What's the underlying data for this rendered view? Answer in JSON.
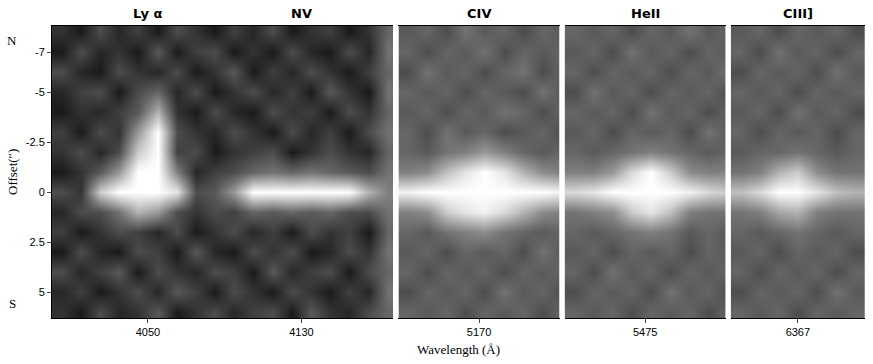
{
  "chart_data": {
    "type": "heatmap",
    "ylabel": "Offset(″)",
    "xlabel": "Wavelength (Å)",
    "ylim": [
      6.3,
      -8.3
    ],
    "yticks": [
      -7,
      -5,
      -2.5,
      0,
      2.5,
      5
    ],
    "side_labels": {
      "top": "N",
      "bottom": "S"
    },
    "color": "gray",
    "zlim": [
      0,
      1
    ],
    "y": [
      -8,
      -7,
      -6,
      -5,
      -4,
      -3,
      -2,
      -1,
      0,
      1,
      2,
      3,
      4,
      5,
      6
    ],
    "panels": [
      {
        "titles": [
          "Ly α",
          "NV"
        ],
        "xlim": [
          4000,
          4178
        ],
        "xticks": [
          4050,
          4130
        ],
        "x": [
          4005,
          4015,
          4025,
          4035,
          4045,
          4055,
          4065,
          4075,
          4085,
          4095,
          4105,
          4115,
          4125,
          4135,
          4145,
          4155,
          4165,
          4175
        ],
        "z": [
          [
            0.2,
            0.1,
            0.3,
            0.15,
            0.25,
            0.1,
            0.3,
            0.2,
            0.1,
            0.25,
            0.15,
            0.3,
            0.1,
            0.2,
            0.25,
            0.1,
            0.2,
            0.4
          ],
          [
            0.1,
            0.3,
            0.15,
            0.2,
            0.1,
            0.35,
            0.1,
            0.25,
            0.3,
            0.1,
            0.2,
            0.1,
            0.3,
            0.15,
            0.1,
            0.3,
            0.15,
            0.45
          ],
          [
            0.3,
            0.15,
            0.1,
            0.3,
            0.2,
            0.15,
            0.3,
            0.1,
            0.2,
            0.35,
            0.1,
            0.25,
            0.15,
            0.3,
            0.2,
            0.1,
            0.25,
            0.4
          ],
          [
            0.15,
            0.25,
            0.3,
            0.1,
            0.3,
            0.4,
            0.15,
            0.3,
            0.1,
            0.2,
            0.3,
            0.15,
            0.25,
            0.1,
            0.35,
            0.2,
            0.1,
            0.45
          ],
          [
            0.1,
            0.2,
            0.15,
            0.25,
            0.35,
            0.7,
            0.2,
            0.1,
            0.3,
            0.15,
            0.1,
            0.3,
            0.2,
            0.25,
            0.1,
            0.3,
            0.2,
            0.4
          ],
          [
            0.25,
            0.1,
            0.3,
            0.2,
            0.6,
            1,
            0.3,
            0.2,
            0.15,
            0.3,
            0.2,
            0.1,
            0.3,
            0.15,
            0.25,
            0.1,
            0.3,
            0.45
          ],
          [
            0.2,
            0.3,
            0.15,
            0.3,
            0.8,
            1,
            0.25,
            0.3,
            0.1,
            0.2,
            0.25,
            0.3,
            0.1,
            0.2,
            0.3,
            0.2,
            0.15,
            0.4
          ],
          [
            0.1,
            0.2,
            0.35,
            0.6,
            1,
            1,
            0.5,
            0.15,
            0.25,
            0.3,
            0.4,
            0.45,
            0.4,
            0.45,
            0.4,
            0.35,
            0.3,
            0.45
          ],
          [
            0.3,
            0.2,
            0.8,
            1,
            1,
            1,
            0.9,
            0.3,
            0.35,
            0.6,
            1,
            1,
            1,
            1,
            1,
            1,
            0.7,
            0.5
          ],
          [
            0.15,
            0.3,
            0.3,
            0.45,
            0.7,
            0.6,
            0.3,
            0.2,
            0.3,
            0.25,
            0.4,
            0.35,
            0.4,
            0.35,
            0.4,
            0.3,
            0.3,
            0.45
          ],
          [
            0.25,
            0.1,
            0.2,
            0.3,
            0.25,
            0.15,
            0.3,
            0.1,
            0.2,
            0.3,
            0.15,
            0.25,
            0.1,
            0.3,
            0.2,
            0.25,
            0.1,
            0.4
          ],
          [
            0.1,
            0.3,
            0.15,
            0.1,
            0.3,
            0.25,
            0.1,
            0.35,
            0.15,
            0.1,
            0.3,
            0.2,
            0.3,
            0.1,
            0.15,
            0.3,
            0.2,
            0.45
          ],
          [
            0.3,
            0.15,
            0.25,
            0.35,
            0.1,
            0.3,
            0.2,
            0.15,
            0.3,
            0.25,
            0.1,
            0.35,
            0.15,
            0.25,
            0.3,
            0.1,
            0.3,
            0.4
          ],
          [
            0.15,
            0.25,
            0.1,
            0.2,
            0.3,
            0.15,
            0.35,
            0.25,
            0.1,
            0.3,
            0.2,
            0.1,
            0.3,
            0.2,
            0.1,
            0.25,
            0.15,
            0.45
          ],
          [
            0.2,
            0.1,
            0.3,
            0.15,
            0.2,
            0.35,
            0.1,
            0.2,
            0.3,
            0.15,
            0.25,
            0.3,
            0.1,
            0.35,
            0.2,
            0.15,
            0.3,
            0.4
          ]
        ]
      },
      {
        "titles": [
          "CIV"
        ],
        "xlim": [
          5128,
          5212
        ],
        "xticks": [
          5170
        ],
        "x": [
          5133,
          5143,
          5153,
          5163,
          5173,
          5183,
          5193,
          5203,
          5213
        ],
        "z": [
          [
            0.35,
            0.4,
            0.3,
            0.45,
            0.35,
            0.4,
            0.3,
            0.4,
            0.35
          ],
          [
            0.4,
            0.3,
            0.4,
            0.35,
            0.45,
            0.3,
            0.4,
            0.35,
            0.4
          ],
          [
            0.3,
            0.45,
            0.35,
            0.4,
            0.3,
            0.4,
            0.45,
            0.3,
            0.4
          ],
          [
            0.4,
            0.35,
            0.4,
            0.3,
            0.4,
            0.35,
            0.3,
            0.45,
            0.35
          ],
          [
            0.35,
            0.4,
            0.3,
            0.4,
            0.35,
            0.45,
            0.4,
            0.3,
            0.4
          ],
          [
            0.4,
            0.3,
            0.45,
            0.35,
            0.4,
            0.3,
            0.35,
            0.4,
            0.3
          ],
          [
            0.4,
            0.35,
            0.45,
            0.5,
            0.6,
            0.5,
            0.4,
            0.35,
            0.4
          ],
          [
            0.5,
            0.55,
            0.75,
            0.9,
            1,
            0.9,
            0.7,
            0.55,
            0.5
          ],
          [
            0.95,
            1,
            1,
            1,
            1,
            1,
            1,
            1,
            0.95
          ],
          [
            0.5,
            0.55,
            0.8,
            0.9,
            0.95,
            0.85,
            0.7,
            0.55,
            0.5
          ],
          [
            0.4,
            0.35,
            0.45,
            0.5,
            0.55,
            0.45,
            0.4,
            0.35,
            0.4
          ],
          [
            0.35,
            0.4,
            0.3,
            0.4,
            0.35,
            0.4,
            0.3,
            0.45,
            0.35
          ],
          [
            0.4,
            0.3,
            0.4,
            0.35,
            0.4,
            0.3,
            0.4,
            0.35,
            0.4
          ],
          [
            0.3,
            0.4,
            0.35,
            0.4,
            0.3,
            0.45,
            0.35,
            0.4,
            0.3
          ],
          [
            0.4,
            0.35,
            0.4,
            0.3,
            0.4,
            0.35,
            0.4,
            0.3,
            0.4
          ]
        ]
      },
      {
        "titles": [
          "HeII"
        ],
        "xlim": [
          5433,
          5517
        ],
        "xticks": [
          5475
        ],
        "x": [
          5438,
          5448,
          5458,
          5468,
          5478,
          5488,
          5498,
          5508,
          5518
        ],
        "z": [
          [
            0.4,
            0.35,
            0.4,
            0.3,
            0.4,
            0.35,
            0.45,
            0.35,
            0.4
          ],
          [
            0.35,
            0.4,
            0.3,
            0.45,
            0.35,
            0.4,
            0.3,
            0.4,
            0.35
          ],
          [
            0.4,
            0.3,
            0.4,
            0.35,
            0.4,
            0.3,
            0.4,
            0.35,
            0.45
          ],
          [
            0.3,
            0.45,
            0.35,
            0.4,
            0.3,
            0.4,
            0.35,
            0.4,
            0.3
          ],
          [
            0.4,
            0.35,
            0.4,
            0.3,
            0.45,
            0.35,
            0.4,
            0.3,
            0.4
          ],
          [
            0.35,
            0.4,
            0.3,
            0.4,
            0.35,
            0.4,
            0.3,
            0.45,
            0.35
          ],
          [
            0.4,
            0.35,
            0.4,
            0.45,
            0.5,
            0.45,
            0.4,
            0.35,
            0.4
          ],
          [
            0.5,
            0.5,
            0.6,
            0.85,
            1,
            0.8,
            0.55,
            0.5,
            0.5
          ],
          [
            0.85,
            0.9,
            1,
            1,
            1,
            1,
            0.95,
            0.85,
            0.8
          ],
          [
            0.45,
            0.5,
            0.55,
            0.8,
            0.9,
            0.75,
            0.5,
            0.45,
            0.45
          ],
          [
            0.4,
            0.35,
            0.4,
            0.45,
            0.5,
            0.45,
            0.35,
            0.4,
            0.35
          ],
          [
            0.35,
            0.4,
            0.3,
            0.4,
            0.35,
            0.4,
            0.3,
            0.4,
            0.35
          ],
          [
            0.4,
            0.3,
            0.45,
            0.35,
            0.4,
            0.3,
            0.4,
            0.35,
            0.4
          ],
          [
            0.3,
            0.4,
            0.35,
            0.4,
            0.3,
            0.45,
            0.35,
            0.4,
            0.3
          ],
          [
            0.4,
            0.35,
            0.4,
            0.3,
            0.4,
            0.35,
            0.4,
            0.3,
            0.4
          ]
        ]
      },
      {
        "titles": [
          "CIII]"
        ],
        "xlim": [
          6332,
          6402
        ],
        "xticks": [
          6367
        ],
        "x": [
          6337,
          6347,
          6357,
          6367,
          6377,
          6387,
          6397
        ],
        "z": [
          [
            0.35,
            0.4,
            0.3,
            0.4,
            0.35,
            0.4,
            0.3
          ],
          [
            0.4,
            0.3,
            0.45,
            0.35,
            0.4,
            0.3,
            0.4
          ],
          [
            0.3,
            0.4,
            0.35,
            0.4,
            0.3,
            0.45,
            0.35
          ],
          [
            0.4,
            0.35,
            0.4,
            0.3,
            0.4,
            0.35,
            0.4
          ],
          [
            0.35,
            0.4,
            0.3,
            0.45,
            0.35,
            0.4,
            0.3
          ],
          [
            0.4,
            0.3,
            0.4,
            0.35,
            0.4,
            0.3,
            0.4
          ],
          [
            0.35,
            0.4,
            0.4,
            0.45,
            0.4,
            0.35,
            0.4
          ],
          [
            0.45,
            0.5,
            0.7,
            0.8,
            0.55,
            0.45,
            0.45
          ],
          [
            0.75,
            0.85,
            1,
            1,
            0.9,
            0.75,
            0.7
          ],
          [
            0.45,
            0.5,
            0.65,
            0.7,
            0.5,
            0.45,
            0.45
          ],
          [
            0.4,
            0.35,
            0.4,
            0.45,
            0.4,
            0.35,
            0.4
          ],
          [
            0.35,
            0.4,
            0.3,
            0.4,
            0.35,
            0.4,
            0.3
          ],
          [
            0.4,
            0.3,
            0.4,
            0.35,
            0.4,
            0.3,
            0.4
          ],
          [
            0.3,
            0.4,
            0.35,
            0.4,
            0.3,
            0.45,
            0.35
          ],
          [
            0.4,
            0.35,
            0.4,
            0.3,
            0.4,
            0.35,
            0.4
          ]
        ]
      }
    ]
  }
}
